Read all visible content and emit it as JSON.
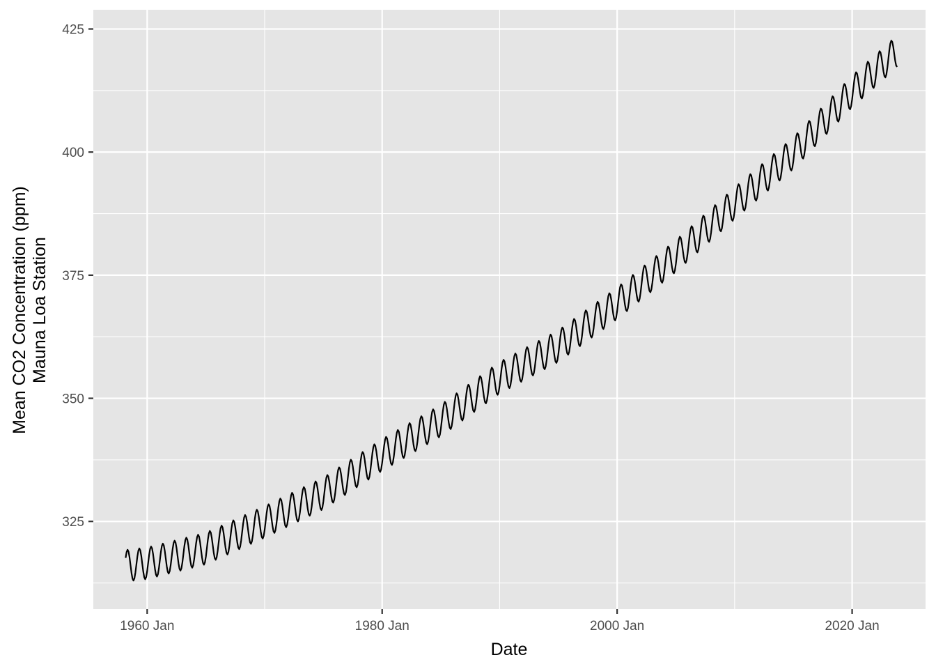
{
  "chart_data": {
    "type": "line",
    "title": "",
    "xlabel": "Date",
    "ylabel_lines": [
      "Mean CO2 Concentration (ppm)",
      "Mauna Loa Station"
    ],
    "x_range": [
      "1958-03",
      "2023-11"
    ],
    "xlim": [
      "1955-06",
      "2026-04"
    ],
    "ylim": [
      307.2,
      428.9
    ],
    "x_ticks": [
      {
        "date": "1960-01",
        "label": "1960 Jan"
      },
      {
        "date": "1980-01",
        "label": "1980 Jan"
      },
      {
        "date": "2000-01",
        "label": "2000 Jan"
      },
      {
        "date": "2020-01",
        "label": "2020 Jan"
      }
    ],
    "x_minor_ticks": [
      "1970-01",
      "1990-01",
      "2010-01"
    ],
    "y_ticks": [
      325,
      350,
      375,
      400,
      425
    ],
    "y_minor_ticks": [
      312.5,
      337.5,
      362.5,
      387.5,
      412.5
    ],
    "grid": true,
    "legend": "none",
    "background_color": "#e5e5e5",
    "grid_color": "#ffffff",
    "line_color": "#000000",
    "series": [
      {
        "frequency": "monthly",
        "anchors": [
          {
            "date": "1958-03",
            "value": 316.0
          },
          {
            "date": "1960-01",
            "value": 316.5
          },
          {
            "date": "1965-01",
            "value": 319.5
          },
          {
            "date": "1970-01",
            "value": 324.9
          },
          {
            "date": "1975-01",
            "value": 330.7
          },
          {
            "date": "1980-01",
            "value": 338.5
          },
          {
            "date": "1985-01",
            "value": 345.5
          },
          {
            "date": "1990-01",
            "value": 354.2
          },
          {
            "date": "1995-01",
            "value": 360.6
          },
          {
            "date": "2000-01",
            "value": 369.3
          },
          {
            "date": "2005-01",
            "value": 378.9
          },
          {
            "date": "2010-01",
            "value": 389.6
          },
          {
            "date": "2015-01",
            "value": 399.8
          },
          {
            "date": "2020-01",
            "value": 412.3
          },
          {
            "date": "2023-11",
            "value": 420.5
          }
        ],
        "seasonal_peak_month": 5,
        "seasonal_amplitude": 3.2
      }
    ]
  }
}
